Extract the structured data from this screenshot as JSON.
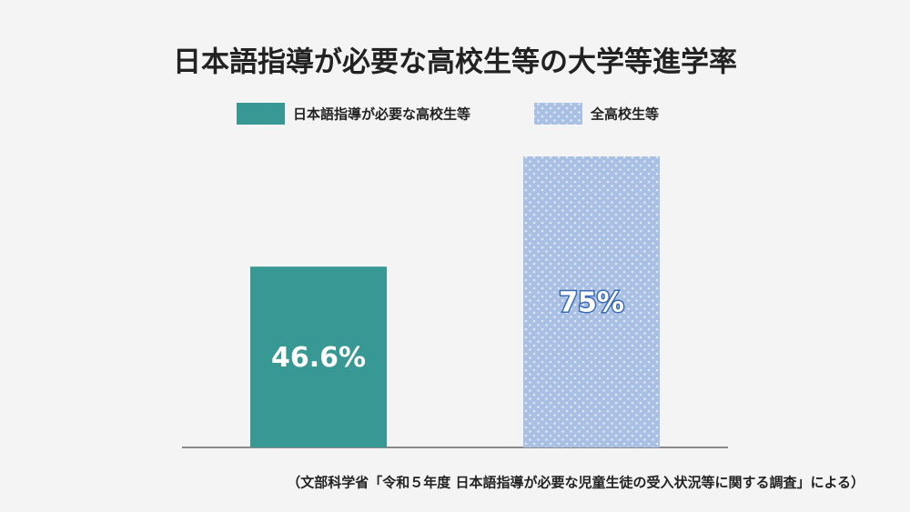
{
  "chart_data": {
    "type": "bar",
    "title": "日本語指導が必要な高校生等の大学等進学率",
    "categories": [
      null
    ],
    "series": [
      {
        "name": "日本語指導が必要な高校生等",
        "color": "#379894",
        "values": [
          46.6
        ],
        "value_labels": [
          "46.6%"
        ]
      },
      {
        "name": "全高校生等",
        "color": "#a9bfe3",
        "pattern": "dots",
        "values": [
          75
        ],
        "value_labels": [
          "75%"
        ]
      }
    ],
    "source": "（文部科学省「令和５年度 日本語指導が必要な児童生徒の受入状況等に関する調査」による）"
  }
}
